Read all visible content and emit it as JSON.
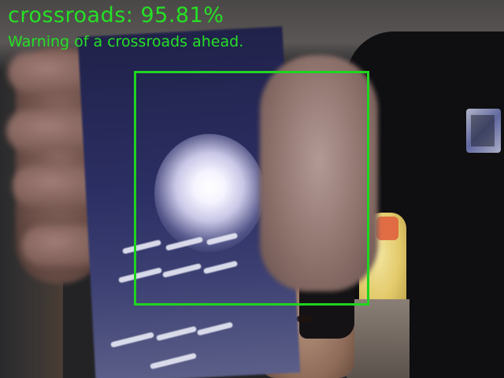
{
  "detection": {
    "label": "crossroads",
    "confidence": "95.81%",
    "header_text": "crossroads: 95.81%",
    "message": "Warning of a crossroads ahead."
  },
  "colors": {
    "overlay": "#25e025",
    "bbox": "#1fd51f"
  }
}
